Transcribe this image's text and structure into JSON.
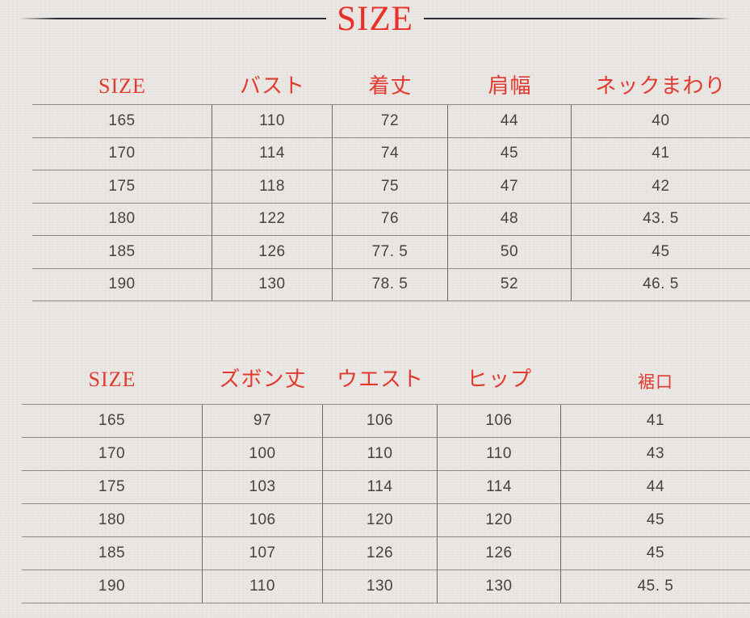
{
  "page": {
    "title": "SIZE",
    "background_color": "#eae7e3",
    "accent_red": "#e23a30",
    "text_color": "#47423f",
    "grid_line_color": "#8d8a85",
    "title_rule_color": "#2c2b33"
  },
  "table1": {
    "headers": [
      "SIZE",
      "バスト",
      "着丈",
      "肩幅",
      "ネックまわり"
    ],
    "rows": [
      [
        "165",
        "110",
        "72",
        "44",
        "40"
      ],
      [
        "170",
        "114",
        "74",
        "45",
        "41"
      ],
      [
        "175",
        "118",
        "75",
        "47",
        "42"
      ],
      [
        "180",
        "122",
        "76",
        "48",
        "43. 5"
      ],
      [
        "185",
        "126",
        "77. 5",
        "50",
        "45"
      ],
      [
        "190",
        "130",
        "78. 5",
        "52",
        "46. 5"
      ]
    ]
  },
  "table2": {
    "headers": [
      "SIZE",
      "ズボン丈",
      "ウエスト",
      "ヒップ",
      "裾口"
    ],
    "rows": [
      [
        "165",
        "97",
        "106",
        "106",
        "41"
      ],
      [
        "170",
        "100",
        "110",
        "110",
        "43"
      ],
      [
        "175",
        "103",
        "114",
        "114",
        "44"
      ],
      [
        "180",
        "106",
        "120",
        "120",
        "45"
      ],
      [
        "185",
        "107",
        "126",
        "126",
        "45"
      ],
      [
        "190",
        "110",
        "130",
        "130",
        "45. 5"
      ]
    ]
  }
}
